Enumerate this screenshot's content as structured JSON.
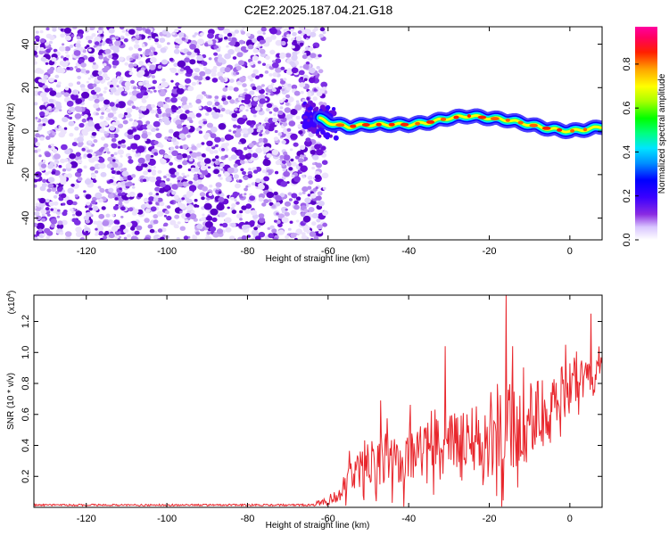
{
  "title": "C2E2.2025.187.04.21.G18",
  "colors": {
    "snr_line": "#e8262c",
    "speckle_dark": "#6a0fd8",
    "speckle_light": "#c9a8f5"
  },
  "chart_data": [
    {
      "type": "heatmap",
      "xlabel": "Height of straight line (km)",
      "ylabel": "Frequency (Hz)",
      "xlim": [
        -133,
        8
      ],
      "ylim": [
        -50,
        48
      ],
      "xticks": [
        "-120",
        "-100",
        "-80",
        "-60",
        "-40",
        "-20",
        "0"
      ],
      "yticks": [
        "40",
        "20",
        "0",
        "-20",
        "-40"
      ],
      "noise_region_x": [
        -133,
        -62
      ],
      "signal_track": {
        "x": [
          -65,
          -60,
          -55,
          -50,
          -45,
          -40,
          -35,
          -30,
          -25,
          -20,
          -15,
          -10,
          -5,
          0,
          5,
          8
        ],
        "freq": [
          8,
          4,
          2,
          3,
          3,
          3,
          4,
          6,
          7,
          6,
          5,
          3,
          1,
          0,
          1,
          2
        ]
      },
      "colorbar": {
        "label": "Normalized spectral amplitude",
        "ticks": [
          "0.0",
          "0.2",
          "0.4",
          "0.6",
          "0.8"
        ],
        "range": [
          0,
          0.97
        ],
        "scale": "rainbow (white, violet, blue, cyan, green, yellow, orange, red, magenta)"
      }
    },
    {
      "type": "line",
      "xlabel": "Height of straight line (km)",
      "ylabel": "SNR (10 * v/v)",
      "multiplier": "(x10",
      "multiplier_exp": "4",
      "multiplier_close": ")",
      "xlim": [
        -133,
        8
      ],
      "ylim": [
        0,
        1.37
      ],
      "xticks": [
        "-120",
        "-100",
        "-80",
        "-60",
        "-40",
        "-20",
        "0"
      ],
      "yticks": [
        "1.2",
        "1.0",
        "0.8",
        "0.6",
        "0.4",
        "0.2"
      ],
      "series_profile": {
        "x": [
          -133,
          -65,
          -60,
          -57,
          -55,
          -50,
          -45,
          -40,
          -35,
          -30,
          -25,
          -20,
          -15,
          -10,
          -5,
          0,
          5,
          8
        ],
        "baseline": [
          0.015,
          0.015,
          0.04,
          0.1,
          0.18,
          0.28,
          0.32,
          0.33,
          0.35,
          0.38,
          0.4,
          0.42,
          0.48,
          0.55,
          0.62,
          0.8,
          0.85,
          0.88
        ],
        "spread": [
          0.01,
          0.01,
          0.05,
          0.1,
          0.16,
          0.24,
          0.28,
          0.3,
          0.34,
          0.4,
          0.4,
          0.45,
          0.55,
          0.45,
          0.4,
          0.25,
          0.25,
          0.2
        ]
      },
      "peaks": [
        {
          "x": -15.8,
          "y": 1.37
        },
        {
          "x": 5.3,
          "y": 1.25
        },
        {
          "x": -31,
          "y": 1.04
        },
        {
          "x": -1,
          "y": 1.05
        },
        {
          "x": -47,
          "y": 0.69
        }
      ]
    }
  ]
}
